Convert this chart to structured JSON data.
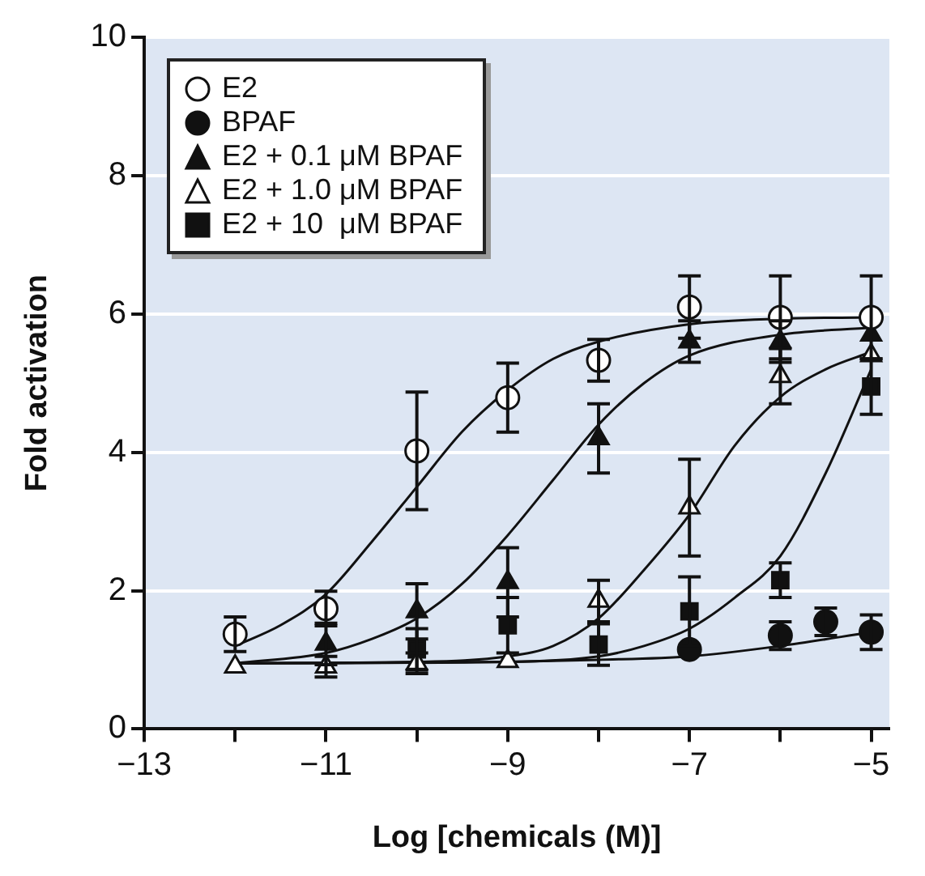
{
  "chart_data": {
    "type": "scatter",
    "xlabel": "Log [chemicals (M)]",
    "ylabel": "Fold activation",
    "xlim": [
      -13,
      -4.8
    ],
    "ylim": [
      0,
      10
    ],
    "xticks": [
      -13,
      {
        "value": -12,
        "label": null
      },
      -11,
      {
        "value": -10,
        "label": null
      },
      -9,
      {
        "value": -8,
        "label": null
      },
      -7,
      {
        "value": -6,
        "label": null
      },
      -5
    ],
    "yticks": [
      0,
      2,
      4,
      6,
      8,
      10
    ],
    "grid": "y",
    "legend": "top left",
    "series": [
      {
        "name": "E2",
        "type": "scatter",
        "marker": "circle",
        "color": "#ffffff",
        "x": [
          -12,
          -11,
          -10,
          -9,
          -8,
          -7,
          -6,
          -5
        ],
        "values": [
          1.37,
          1.74,
          4.02,
          4.79,
          5.33,
          6.1,
          5.95,
          5.95
        ],
        "errors": [
          0.25,
          0.25,
          0.85,
          0.5,
          0.3,
          0.45,
          0.6,
          0.6
        ]
      },
      {
        "name": "BPAF",
        "type": "scatter",
        "marker": "circle",
        "color": "#111111",
        "x": [
          -7,
          -6,
          -5.5,
          -5
        ],
        "values": [
          1.15,
          1.35,
          1.55,
          1.4
        ],
        "errors": [
          null,
          0.2,
          0.2,
          0.25
        ]
      },
      {
        "name": "E2 + 0.1 μM BPAF",
        "type": "scatter",
        "marker": "triangle",
        "color": "#111111",
        "x": [
          -11,
          -10,
          -9,
          -8,
          -7,
          -6,
          -5
        ],
        "values": [
          1.23,
          1.7,
          2.12,
          4.2,
          5.6,
          5.6,
          5.7
        ],
        "errors": [
          0.3,
          0.4,
          0.5,
          0.5,
          0.3,
          0.3,
          null
        ]
      },
      {
        "name": "E2 + 1.0 μM BPAF",
        "type": "scatter",
        "marker": "triangle",
        "color": "#ffffff",
        "x": [
          -12,
          -11,
          -10,
          -9,
          -8,
          -7,
          -6,
          -5
        ],
        "values": [
          0.9,
          0.9,
          0.95,
          0.98,
          1.85,
          3.2,
          5.1,
          5.4
        ],
        "errors": [
          null,
          0.15,
          0.15,
          null,
          0.3,
          0.7,
          0.4,
          null
        ]
      },
      {
        "name": "E2 + 10  μM BPAF",
        "type": "scatter",
        "marker": "square",
        "color": "#111111",
        "x": [
          -10,
          -9,
          -8,
          -7,
          -6,
          -5
        ],
        "values": [
          1.15,
          1.5,
          1.22,
          1.7,
          2.15,
          4.95
        ],
        "errors": [
          0.3,
          0.4,
          0.3,
          0.5,
          0.25,
          0.4
        ]
      },
      {
        "type": "line",
        "marker": "none",
        "color": "#111111",
        "x": [
          -12,
          -11.5,
          -11,
          -10.5,
          -10,
          -9.5,
          -9,
          -8.5,
          -8,
          -7,
          -6,
          -5
        ],
        "values": [
          1.2,
          1.5,
          1.95,
          2.7,
          3.5,
          4.3,
          4.9,
          5.35,
          5.6,
          5.85,
          5.93,
          5.95
        ]
      },
      {
        "type": "line",
        "marker": "none",
        "color": "#111111",
        "x": [
          -12,
          -9,
          -8,
          -7,
          -6,
          -5
        ],
        "values": [
          0.95,
          0.97,
          1.0,
          1.05,
          1.2,
          1.4
        ]
      },
      {
        "type": "line",
        "marker": "none",
        "color": "#111111",
        "x": [
          -12,
          -11,
          -10.5,
          -10,
          -9.5,
          -9,
          -8.5,
          -8,
          -7.5,
          -7,
          -6,
          -5
        ],
        "values": [
          0.95,
          1.1,
          1.3,
          1.6,
          2.1,
          2.8,
          3.6,
          4.4,
          5.0,
          5.4,
          5.7,
          5.8
        ]
      },
      {
        "type": "line",
        "marker": "none",
        "color": "#111111",
        "x": [
          -12,
          -10,
          -9,
          -8.5,
          -8,
          -7.5,
          -7,
          -6.5,
          -6,
          -5.5,
          -5
        ],
        "values": [
          0.95,
          0.97,
          1.05,
          1.2,
          1.6,
          2.3,
          3.1,
          4.1,
          4.8,
          5.2,
          5.45
        ]
      },
      {
        "type": "line",
        "marker": "none",
        "color": "#111111",
        "x": [
          -12,
          -9,
          -8,
          -7.5,
          -7,
          -6.5,
          -6,
          -5.5,
          -5
        ],
        "values": [
          0.95,
          0.97,
          1.05,
          1.2,
          1.45,
          1.9,
          2.5,
          3.7,
          5.2
        ]
      }
    ]
  }
}
